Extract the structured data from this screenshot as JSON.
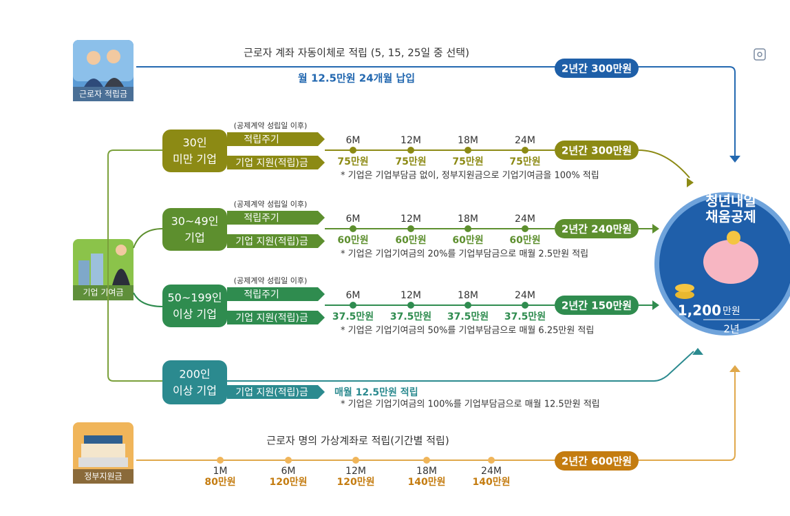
{
  "worker": {
    "label": "근로자 적립금",
    "desc": "근로자 계좌 자동이체로 적립 (5, 15, 25일 중 선택)",
    "sub": "월 12.5만원 24개월 납입",
    "total": "2년간 300만원"
  },
  "company": {
    "label": "기업 기여금",
    "tiers": [
      {
        "name_lines": [
          "30인",
          "미만 기업"
        ],
        "note": "(공제계약 성립일 이후)",
        "cycle": "적립주기",
        "support": "기업 지원(적립)금",
        "points": [
          {
            "period": "6M",
            "amount": "75만원"
          },
          {
            "period": "12M",
            "amount": "75만원"
          },
          {
            "period": "18M",
            "amount": "75만원"
          },
          {
            "period": "24M",
            "amount": "75만원"
          }
        ],
        "total": "2년간 300만원",
        "footnote": "* 기업은 기업부담금 없이, 정부지원금으로 기업기여금을 100% 적립"
      },
      {
        "name_lines": [
          "30~49인",
          "기업"
        ],
        "note": "(공제계약 성립일 이후)",
        "cycle": "적립주기",
        "support": "기업 지원(적립)금",
        "points": [
          {
            "period": "6M",
            "amount": "60만원"
          },
          {
            "period": "12M",
            "amount": "60만원"
          },
          {
            "period": "18M",
            "amount": "60만원"
          },
          {
            "period": "24M",
            "amount": "60만원"
          }
        ],
        "total": "2년간 240만원",
        "footnote": "* 기업은 기업기여금의 20%를 기업부담금으로 매월 2.5만원 적립"
      },
      {
        "name_lines": [
          "50~199인",
          "이상 기업"
        ],
        "note": "(공제계약 성립일 이후)",
        "cycle": "적립주기",
        "support": "기업 지원(적립)금",
        "points": [
          {
            "period": "6M",
            "amount": "37.5만원"
          },
          {
            "period": "12M",
            "amount": "37.5만원"
          },
          {
            "period": "18M",
            "amount": "37.5만원"
          },
          {
            "period": "24M",
            "amount": "37.5만원"
          }
        ],
        "total": "2년간 150만원",
        "footnote": "* 기업은 기업기여금의 50%를 기업부담금으로 매월 6.25만원 적립"
      }
    ],
    "large": {
      "name_lines": [
        "200인",
        "이상 기업"
      ],
      "support": "기업 지원(적립)금",
      "monthly": "매월 12.5만원 적립",
      "footnote": "* 기업은 기업기여금의 100%를 기업부담금으로 매월 12.5만원 적립"
    }
  },
  "government": {
    "label": "정부지원금",
    "desc": "근로자 명의 가상계좌로 적립(기간별 적립)",
    "points": [
      {
        "period": "1M",
        "amount": "80만원"
      },
      {
        "period": "6M",
        "amount": "120만원"
      },
      {
        "period": "12M",
        "amount": "120만원"
      },
      {
        "period": "18M",
        "amount": "140만원"
      },
      {
        "period": "24M",
        "amount": "140만원"
      }
    ],
    "total": "2년간 600만원"
  },
  "product": {
    "title_lines": [
      "청년내일",
      "채움공제"
    ],
    "amount": "1,200",
    "unit": "만원",
    "period": "2년"
  }
}
